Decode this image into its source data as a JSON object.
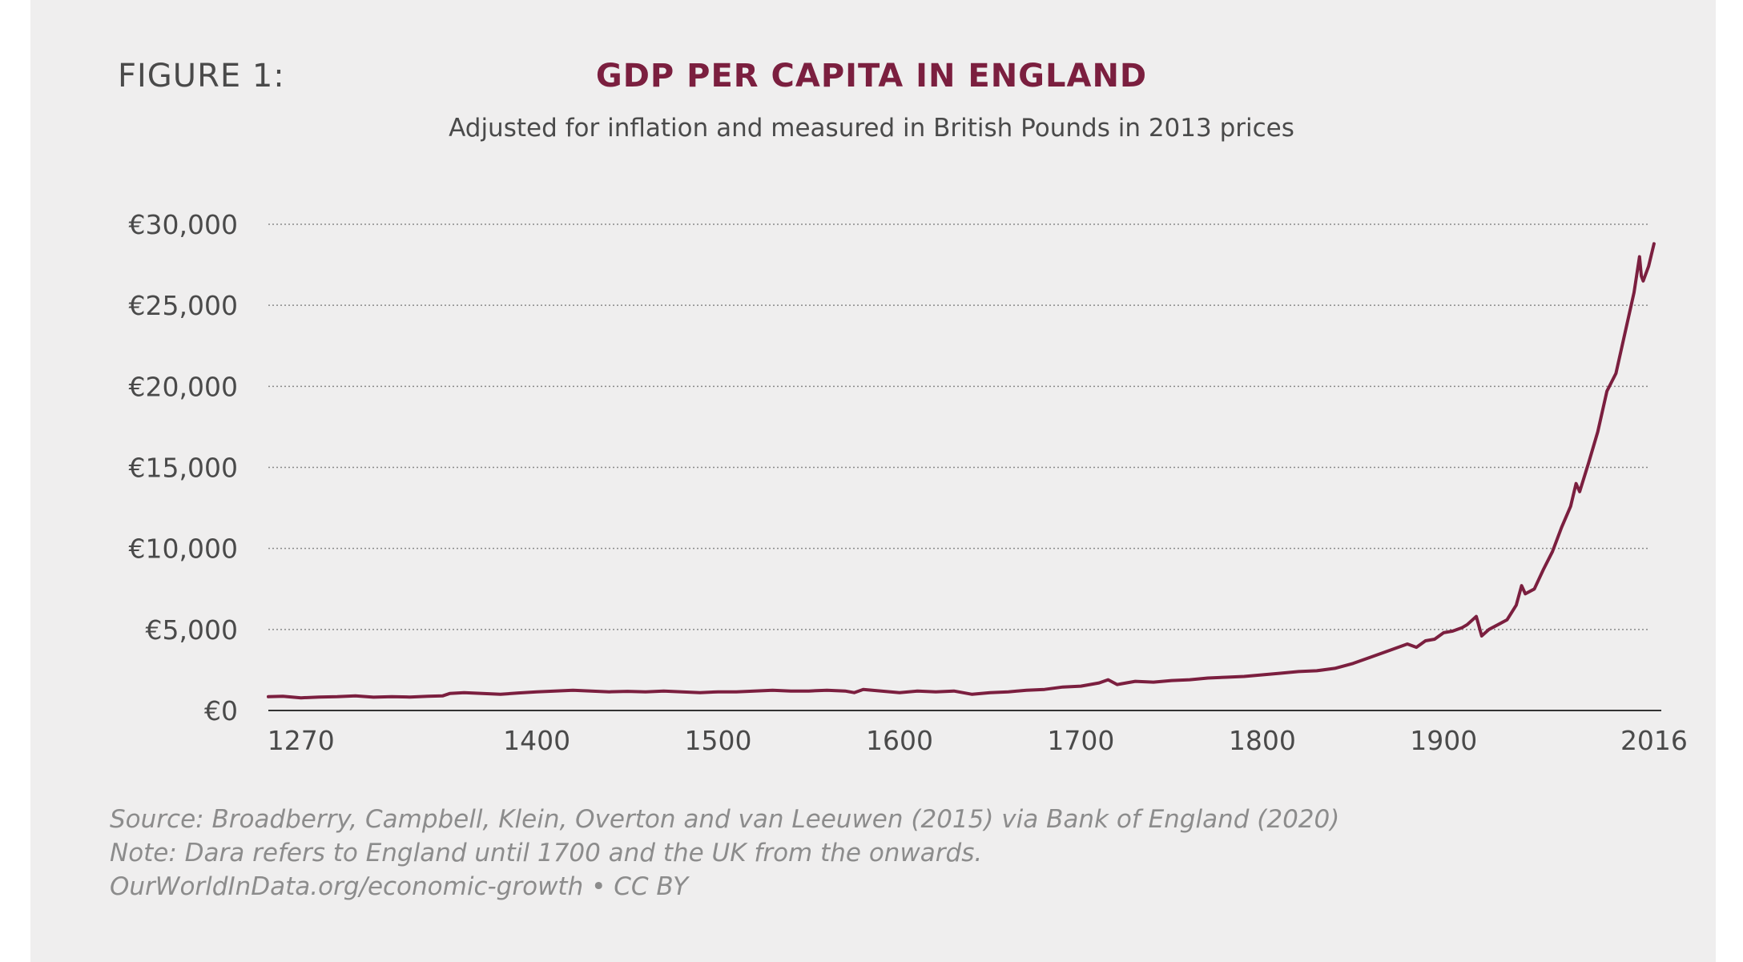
{
  "header": {
    "figure_label": "FIGURE 1:",
    "title": "GDP PER CAPITA IN ENGLAND",
    "subtitle": "Adjusted for inflation and measured in British Pounds in 2013 prices"
  },
  "notes": {
    "source": "Source: Broadberry, Campbell, Klein, Overton and van Leeuwen (2015) via Bank of England (2020)",
    "note": "Note: Dara refers to England until 1700 and the UK from the onwards.",
    "credit": "OurWorldInData.org/economic-growth • CC BY"
  },
  "colors": {
    "line": "#7b1f3f",
    "grid": "#8a8a8a",
    "axis": "#333333",
    "panel": "#efeeee"
  },
  "chart_data": {
    "type": "line",
    "title": "GDP PER CAPITA IN ENGLAND",
    "subtitle": "Adjusted for inflation and measured in British Pounds in 2013 prices",
    "xlabel": "",
    "ylabel": "",
    "grid": true,
    "xlim": [
      1252,
      2020
    ],
    "ylim": [
      0,
      30000
    ],
    "y_ticks": [
      0,
      5000,
      10000,
      15000,
      20000,
      25000,
      30000
    ],
    "y_tick_labels": [
      "€0",
      "€5,000",
      "€10,000",
      "€15,000",
      "€20,000",
      "€25,000",
      "€30,000"
    ],
    "x_ticks": [
      1270,
      1400,
      1500,
      1600,
      1700,
      1800,
      1900,
      2016
    ],
    "x_tick_labels": [
      "1270",
      "1400",
      "1500",
      "1600",
      "1700",
      "1800",
      "1900",
      "2016"
    ],
    "series": [
      {
        "name": "GDP per capita",
        "x": [
          1252,
          1260,
          1270,
          1280,
          1290,
          1300,
          1310,
          1320,
          1330,
          1340,
          1348,
          1352,
          1360,
          1370,
          1380,
          1390,
          1400,
          1410,
          1420,
          1430,
          1440,
          1450,
          1460,
          1470,
          1480,
          1490,
          1500,
          1510,
          1520,
          1530,
          1540,
          1550,
          1560,
          1570,
          1575,
          1580,
          1590,
          1600,
          1610,
          1620,
          1630,
          1640,
          1650,
          1660,
          1670,
          1680,
          1690,
          1700,
          1710,
          1715,
          1720,
          1730,
          1740,
          1750,
          1760,
          1770,
          1780,
          1790,
          1800,
          1810,
          1820,
          1830,
          1840,
          1850,
          1860,
          1870,
          1880,
          1885,
          1890,
          1895,
          1900,
          1905,
          1910,
          1913,
          1918,
          1921,
          1925,
          1930,
          1935,
          1940,
          1943,
          1945,
          1950,
          1955,
          1960,
          1965,
          1970,
          1973,
          1975,
          1980,
          1985,
          1990,
          1995,
          2000,
          2005,
          2008,
          2009,
          2010,
          2013,
          2016
        ],
        "values": [
          850,
          880,
          780,
          830,
          850,
          900,
          820,
          850,
          830,
          880,
          900,
          1050,
          1100,
          1050,
          1000,
          1080,
          1150,
          1200,
          1250,
          1200,
          1150,
          1180,
          1150,
          1200,
          1150,
          1100,
          1150,
          1150,
          1200,
          1250,
          1200,
          1200,
          1250,
          1200,
          1100,
          1300,
          1200,
          1100,
          1200,
          1150,
          1200,
          1000,
          1100,
          1150,
          1250,
          1300,
          1450,
          1500,
          1700,
          1900,
          1600,
          1800,
          1750,
          1850,
          1900,
          2000,
          2050,
          2100,
          2200,
          2300,
          2400,
          2450,
          2600,
          2900,
          3300,
          3700,
          4100,
          3900,
          4300,
          4400,
          4800,
          4900,
          5100,
          5300,
          5800,
          4600,
          5000,
          5300,
          5600,
          6500,
          7700,
          7200,
          7500,
          8700,
          9800,
          11300,
          12600,
          14000,
          13500,
          15300,
          17200,
          19700,
          20800,
          23300,
          25800,
          28000,
          26800,
          26500,
          27400,
          28800
        ]
      }
    ]
  }
}
